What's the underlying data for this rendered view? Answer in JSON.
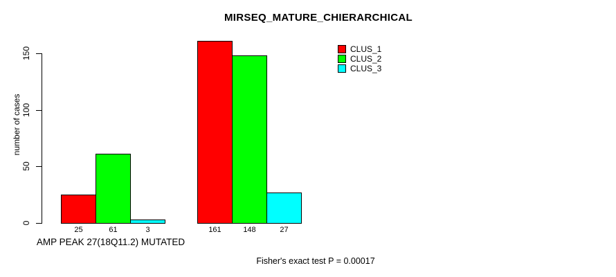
{
  "page": {
    "background_color": "#ffffff",
    "text_color": "#000000"
  },
  "chart_data": {
    "type": "bar",
    "title": "MIRSEQ_MATURE_CHIERARCHICAL",
    "ylabel": "number of cases",
    "xlabel": "",
    "ylim": [
      0,
      150
    ],
    "yticks": [
      0,
      50,
      100,
      150
    ],
    "grid": false,
    "categories": [
      "AMP PEAK 27(18Q11.2) MUTATED",
      ""
    ],
    "series": [
      {
        "name": "CLUS_1",
        "color": "#ff0000",
        "values": [
          25,
          161
        ]
      },
      {
        "name": "CLUS_2",
        "color": "#00ff00",
        "values": [
          61,
          148
        ]
      },
      {
        "name": "CLUS_3",
        "color": "#00ffff",
        "values": [
          3,
          27
        ]
      }
    ],
    "bar_value_labels_shown": true,
    "legend_position": "top-right",
    "annotation": "Fisher's exact test P = 0.00017"
  }
}
